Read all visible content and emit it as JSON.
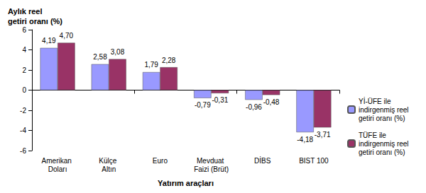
{
  "chart_data": {
    "type": "bar",
    "y_label": "Aylık reel getiri oranı (%)",
    "x_label": "Yatırım araçları",
    "categories": [
      "Amerikan Doları",
      "Külçe Altın",
      "Euro",
      "Mevduat Faizi (Brüt)",
      "DİBS",
      "BIST 100"
    ],
    "series": [
      {
        "name": "Yİ-ÜFE ile indirgenmiş reel getiri oranı (%)",
        "color": "#9999ff",
        "values": [
          4.19,
          2.58,
          1.79,
          -0.79,
          -0.96,
          -4.18
        ],
        "value_labels": [
          "4,19",
          "2,58",
          "1,79",
          "-0,79",
          "-0,96",
          "-4,18"
        ]
      },
      {
        "name": "TÜFE ile indirgenmiş reel getiri oranı (%)",
        "color": "#993366",
        "values": [
          4.7,
          3.08,
          2.28,
          -0.31,
          -0.48,
          -3.71
        ],
        "value_labels": [
          "4,70",
          "3,08",
          "2,28",
          "-0,31",
          "-0,48",
          "-3,71"
        ]
      }
    ],
    "ylim": [
      -6,
      6
    ],
    "yticks": [
      -6,
      -4,
      -2,
      0,
      2,
      4,
      6
    ],
    "grid": false,
    "legend": "right",
    "data_labels": true
  }
}
